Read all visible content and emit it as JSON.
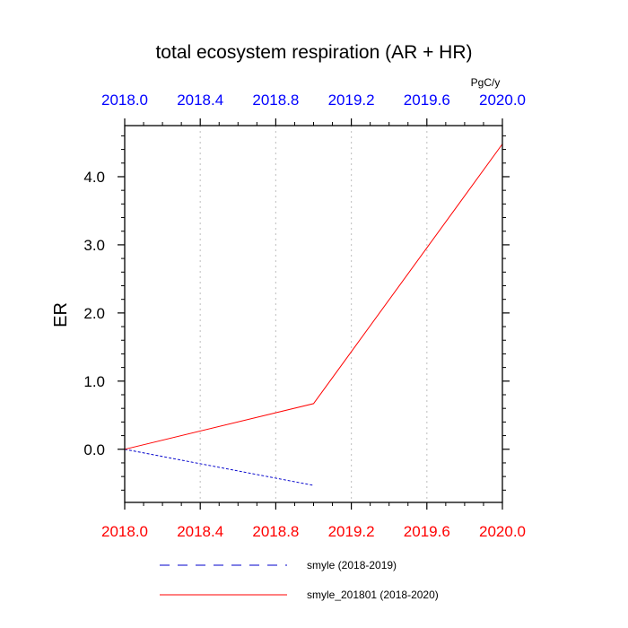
{
  "chart_data": {
    "type": "line",
    "title": "total ecosystem respiration (AR + HR)",
    "units": "PgC/y",
    "ylabel": "ER",
    "xlabel": "",
    "xlim": [
      2018.0,
      2020.0
    ],
    "ylim": [
      -0.78,
      4.75
    ],
    "grid": "vertical dotted lines at major x ticks",
    "x_ticks": [
      2018.0,
      2018.4,
      2018.8,
      2019.2,
      2019.6,
      2020.0
    ],
    "x_tick_labels": [
      "2018.0",
      "2018.4",
      "2018.8",
      "2019.2",
      "2019.6",
      "2020.0"
    ],
    "y_ticks": [
      0.0,
      1.0,
      2.0,
      3.0,
      4.0
    ],
    "y_tick_labels": [
      "0.0",
      "1.0",
      "2.0",
      "3.0",
      "4.0"
    ],
    "top_axis_color": "#0000ff",
    "bottom_axis_color": "#ff0000",
    "legend_position": "bottom",
    "series": [
      {
        "name": "smyle (2018-2019)",
        "color": "#0000cc",
        "dash": "dashed",
        "x": [
          2018.0,
          2019.0
        ],
        "y": [
          0.0,
          -0.53
        ]
      },
      {
        "name": "smyle_201801 (2018-2020)",
        "color": "#ff0000",
        "dash": "solid",
        "x": [
          2018.0,
          2019.0,
          2020.0
        ],
        "y": [
          0.0,
          0.67,
          4.48
        ]
      }
    ]
  }
}
